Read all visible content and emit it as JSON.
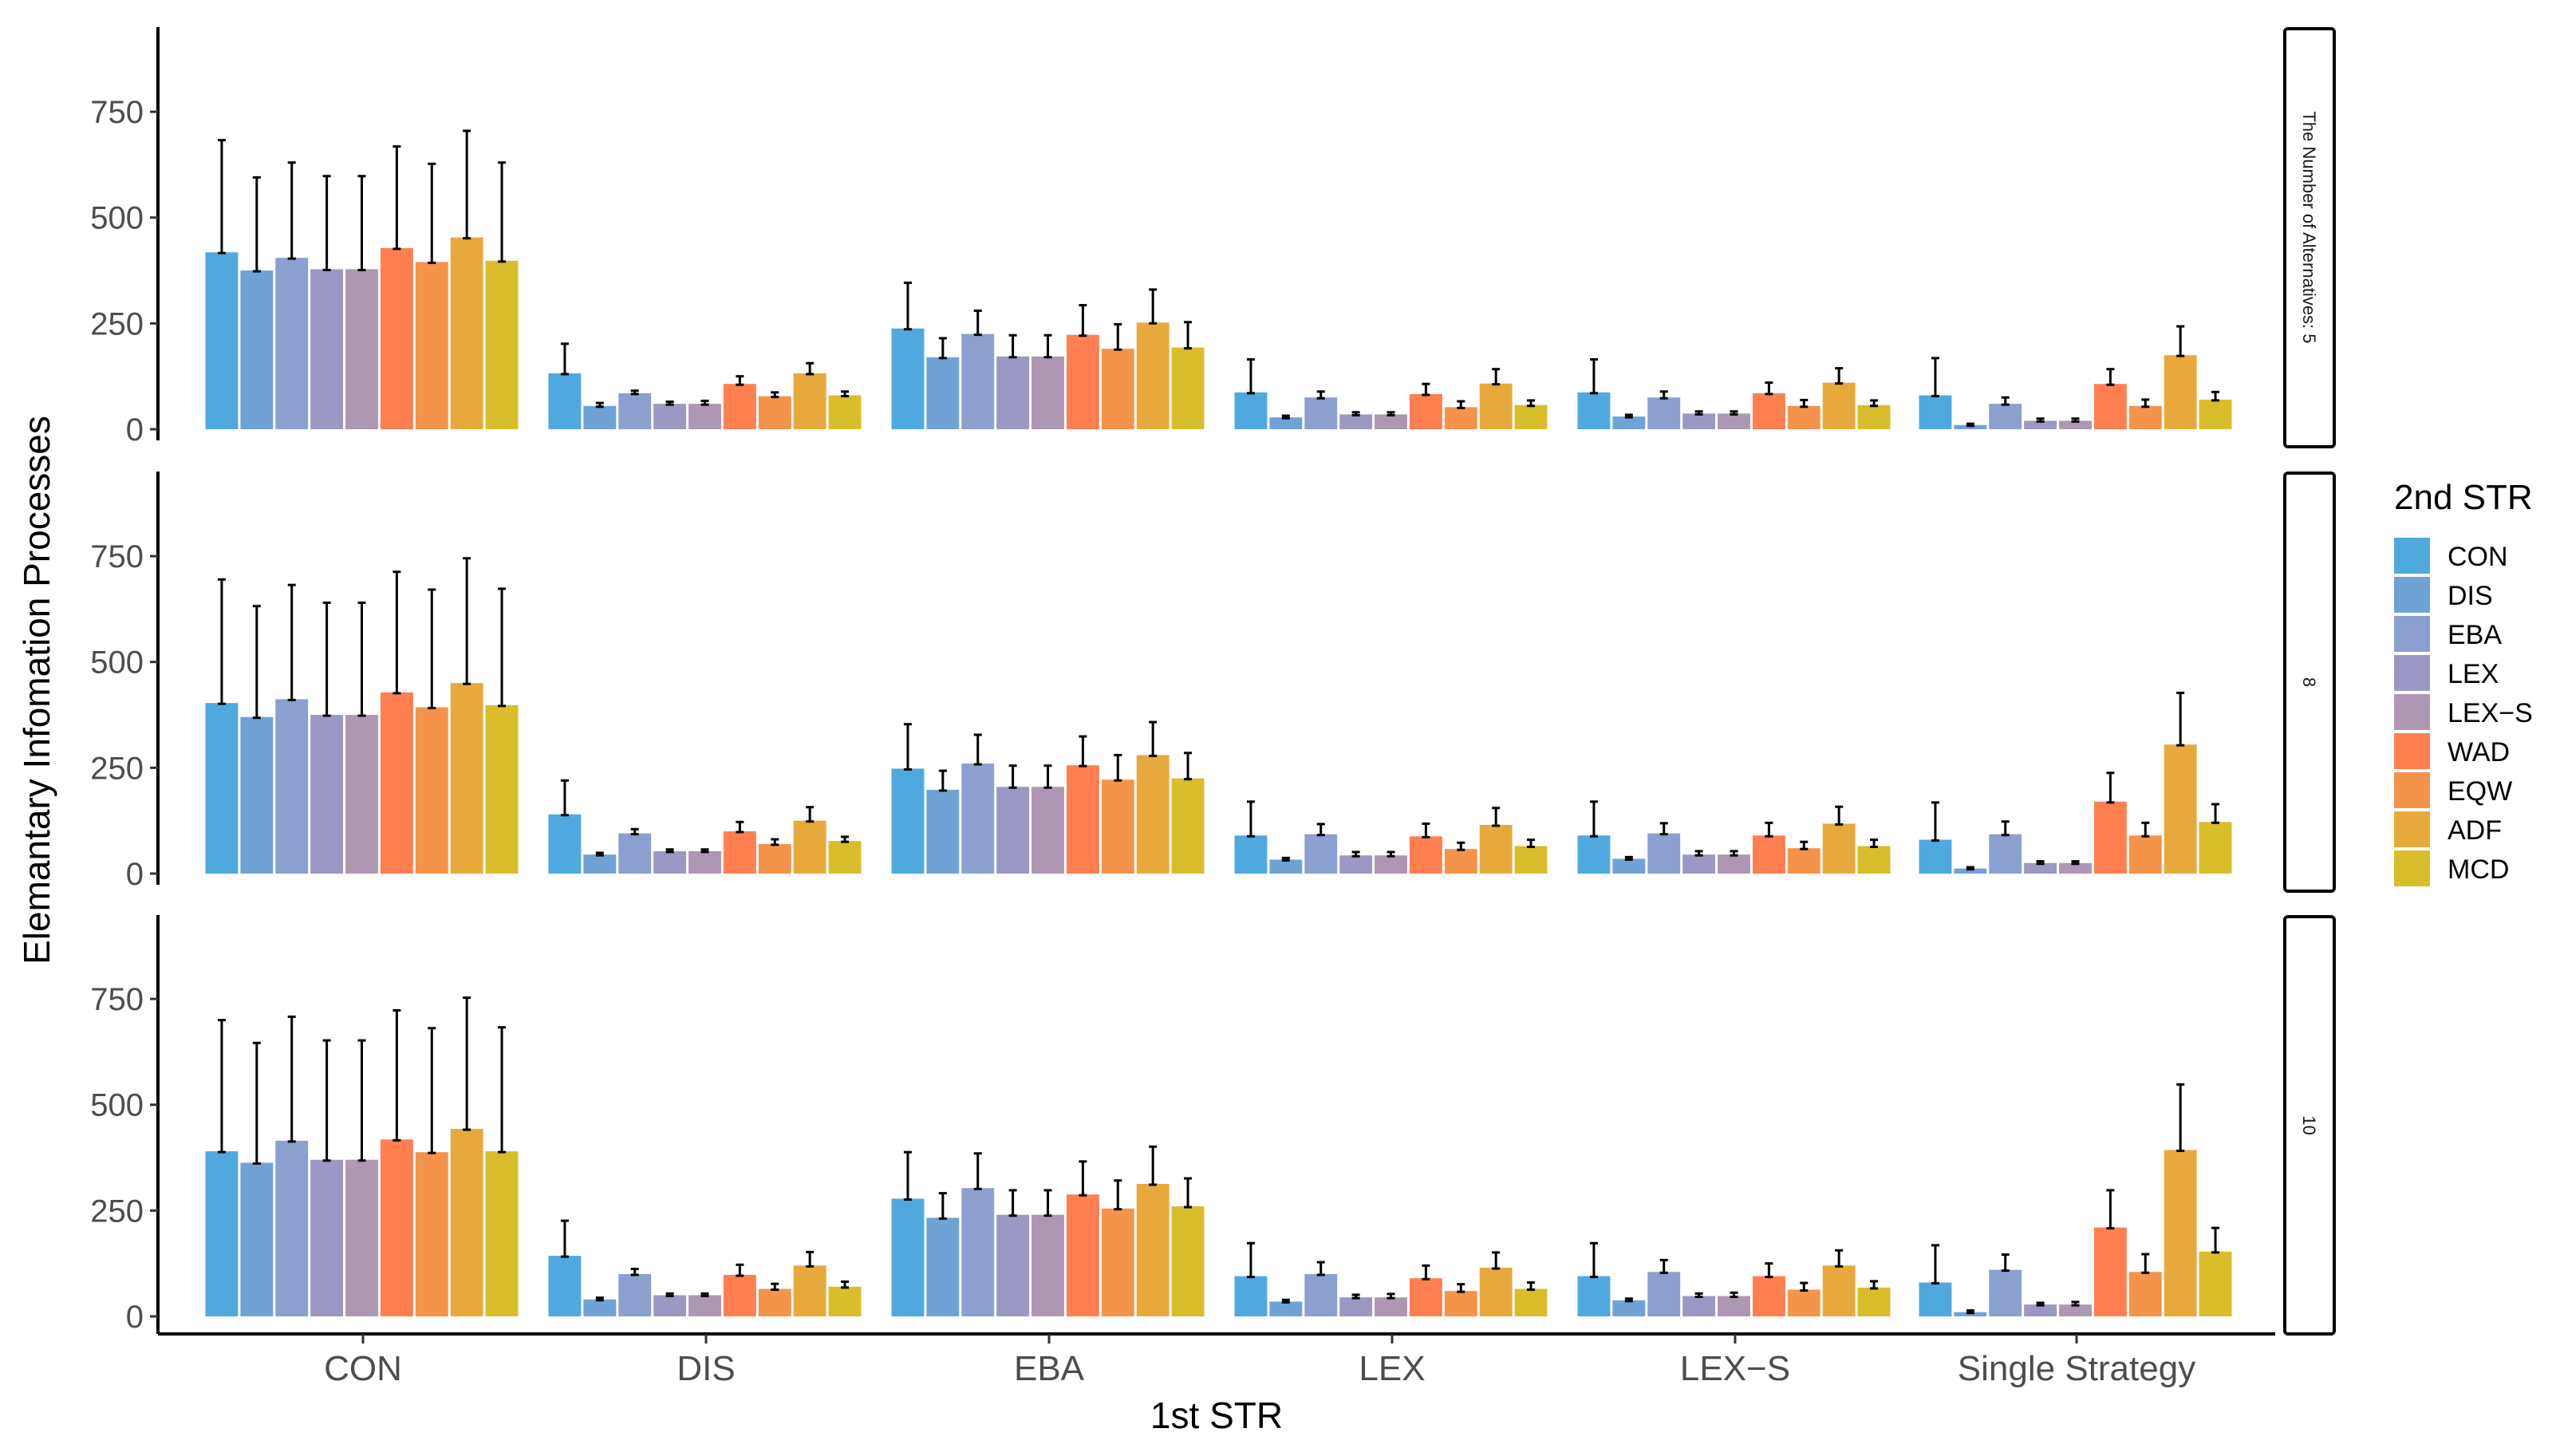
{
  "chart_data": {
    "type": "bar",
    "xlabel": "1st STR",
    "ylabel": "Elemantary Infomation Processes",
    "legend_title": "2nd STR",
    "legend_position": "right",
    "grid": false,
    "ylim": [
      0,
      950
    ],
    "yticks": [
      0,
      250,
      500,
      750
    ],
    "categories": [
      "CON",
      "DIS",
      "EBA",
      "LEX",
      "LEX−S",
      "Single Strategy"
    ],
    "series_names": [
      "CON",
      "DIS",
      "EBA",
      "LEX",
      "LEX−S",
      "WAD",
      "EQW",
      "ADF",
      "MCD"
    ],
    "colors": [
      "#4FA9DF",
      "#6FA3D6",
      "#8BA0CE",
      "#9C98C4",
      "#AE97B2",
      "#FF7F50",
      "#F4944A",
      "#E8A93C",
      "#D9BD2A"
    ],
    "panels": [
      {
        "strip": "The Number of Alternatives: 5",
        "values": [
          [
            418,
            375,
            405,
            378,
            378,
            428,
            395,
            453,
            398
          ],
          [
            132,
            55,
            85,
            60,
            60,
            107,
            78,
            132,
            80
          ],
          [
            238,
            170,
            225,
            172,
            172,
            223,
            190,
            252,
            193
          ],
          [
            87,
            28,
            75,
            35,
            35,
            83,
            52,
            108,
            57
          ],
          [
            87,
            30,
            75,
            37,
            37,
            85,
            55,
            110,
            57
          ],
          [
            80,
            10,
            60,
            20,
            20,
            107,
            55,
            175,
            70
          ]
        ],
        "errors": [
          [
            265,
            220,
            225,
            220,
            220,
            240,
            232,
            252,
            232
          ],
          [
            70,
            7,
            6,
            5,
            7,
            18,
            9,
            24,
            9
          ],
          [
            108,
            45,
            55,
            50,
            50,
            70,
            58,
            78,
            60
          ],
          [
            78,
            4,
            14,
            5,
            5,
            24,
            14,
            34,
            11
          ],
          [
            78,
            4,
            14,
            5,
            5,
            25,
            14,
            34,
            11
          ],
          [
            88,
            3,
            15,
            5,
            5,
            35,
            15,
            68,
            18
          ]
        ]
      },
      {
        "strip": "8",
        "values": [
          [
            403,
            370,
            412,
            375,
            375,
            428,
            393,
            450,
            398
          ],
          [
            140,
            45,
            95,
            53,
            53,
            100,
            70,
            125,
            77
          ],
          [
            248,
            198,
            260,
            205,
            205,
            256,
            222,
            280,
            225
          ],
          [
            90,
            33,
            93,
            43,
            43,
            88,
            58,
            115,
            65
          ],
          [
            90,
            35,
            95,
            45,
            45,
            90,
            60,
            118,
            65
          ],
          [
            80,
            12,
            93,
            25,
            25,
            170,
            90,
            305,
            122
          ]
        ],
        "errors": [
          [
            292,
            262,
            270,
            265,
            265,
            285,
            278,
            295,
            275
          ],
          [
            80,
            4,
            10,
            4,
            4,
            22,
            11,
            32,
            10
          ],
          [
            105,
            45,
            68,
            50,
            50,
            68,
            58,
            78,
            60
          ],
          [
            80,
            4,
            24,
            8,
            8,
            30,
            15,
            40,
            15
          ],
          [
            80,
            4,
            24,
            8,
            8,
            30,
            15,
            40,
            15
          ],
          [
            88,
            3,
            30,
            4,
            4,
            68,
            30,
            122,
            42
          ]
        ]
      },
      {
        "strip": "10",
        "values": [
          [
            390,
            363,
            415,
            370,
            370,
            418,
            388,
            443,
            390
          ],
          [
            143,
            40,
            100,
            50,
            50,
            98,
            65,
            120,
            70
          ],
          [
            278,
            233,
            303,
            240,
            240,
            288,
            255,
            313,
            260
          ],
          [
            95,
            35,
            100,
            45,
            45,
            90,
            60,
            115,
            65
          ],
          [
            95,
            38,
            105,
            48,
            48,
            95,
            63,
            120,
            68
          ],
          [
            80,
            10,
            110,
            28,
            28,
            210,
            105,
            393,
            153
          ]
        ],
        "errors": [
          [
            310,
            283,
            293,
            282,
            282,
            305,
            293,
            310,
            293
          ],
          [
            83,
            4,
            12,
            4,
            4,
            24,
            12,
            32,
            12
          ],
          [
            110,
            58,
            82,
            58,
            58,
            78,
            66,
            88,
            66
          ],
          [
            78,
            4,
            28,
            6,
            8,
            30,
            16,
            36,
            15
          ],
          [
            78,
            4,
            28,
            6,
            8,
            30,
            16,
            36,
            15
          ],
          [
            88,
            4,
            36,
            4,
            6,
            88,
            42,
            155,
            56
          ]
        ]
      }
    ]
  }
}
